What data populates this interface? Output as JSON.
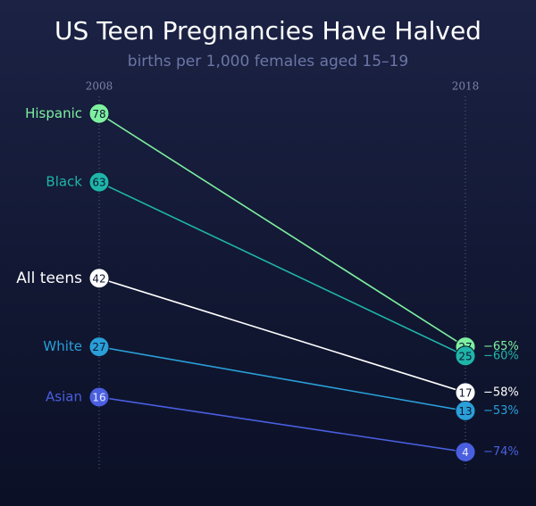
{
  "chart_data": {
    "type": "slope",
    "title": "US Teen Pregnancies Have Halved",
    "subtitle": "births per 1,000 females aged 15–19",
    "categories": [
      "2008",
      "2018"
    ],
    "ylim": [
      0,
      80
    ],
    "series": [
      {
        "name": "Hispanic",
        "color": "#7ef0a0",
        "values": [
          78,
          27
        ],
        "change_label": "−65%"
      },
      {
        "name": "Black",
        "color": "#1fb5a8",
        "values": [
          63,
          25
        ],
        "change_label": "−60%"
      },
      {
        "name": "All teens",
        "color": "#ffffff",
        "values": [
          42,
          17
        ],
        "change_label": "−58%"
      },
      {
        "name": "White",
        "color": "#2a9fd8",
        "values": [
          27,
          13
        ],
        "change_label": "−53%"
      },
      {
        "name": "Asian",
        "color": "#4a5fe0",
        "values": [
          16,
          4
        ],
        "change_label": "−74%"
      }
    ]
  }
}
